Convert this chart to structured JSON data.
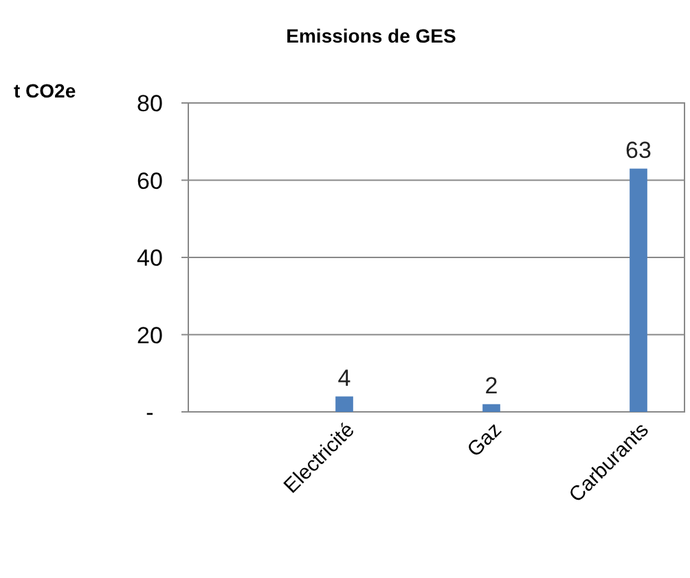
{
  "chart_data": {
    "type": "bar",
    "title": "Emissions de GES",
    "ylabel": "t CO2e",
    "categories": [
      "Electricité",
      "Gaz",
      "Carburants"
    ],
    "values": [
      4,
      2,
      63
    ],
    "color": "#4f81bd",
    "ylim": [
      0,
      80
    ],
    "yticks": [
      {
        "value": 0,
        "label": "-"
      },
      20,
      40,
      60,
      80
    ],
    "grid": "y",
    "data_labels": true
  }
}
